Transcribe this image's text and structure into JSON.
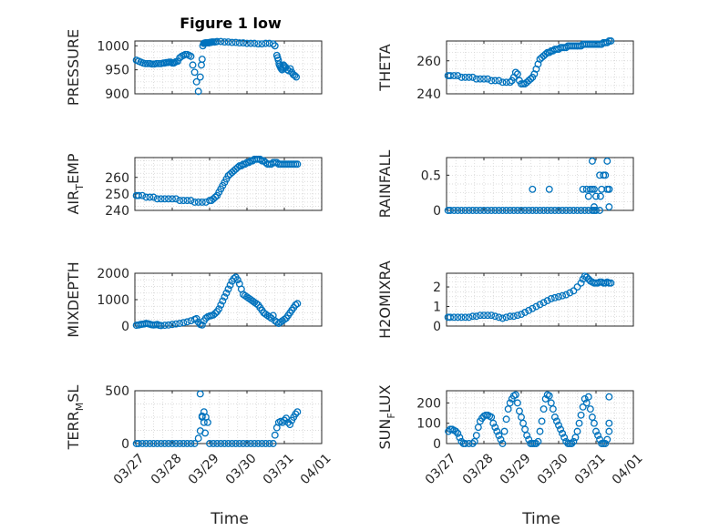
{
  "figure": {
    "title": "Figure 1 low",
    "xlabel": "Time",
    "marker_color": "#0072BD",
    "axis_color": "#262626",
    "grid_color": "#d0d0d0"
  },
  "chart_data": [
    {
      "type": "scatter",
      "id": "pressure",
      "title": "Figure 1 low",
      "ylabel": "PRESSURE",
      "ylabel_sub": "",
      "xlim": [
        0,
        5
      ],
      "ylim": [
        900,
        1010
      ],
      "yticks": [
        900,
        950,
        1000
      ],
      "xticks": [
        0,
        1,
        2,
        3,
        4,
        5
      ],
      "xticklabels": [
        "03/27",
        "03/28",
        "03/29",
        "03/30",
        "03/31",
        "04/01"
      ],
      "show_xticklabels": false,
      "grid": true,
      "x": [
        0.04,
        0.1,
        0.16,
        0.22,
        0.28,
        0.34,
        0.4,
        0.46,
        0.52,
        0.58,
        0.64,
        0.7,
        0.76,
        0.8,
        0.84,
        0.88,
        0.92,
        0.96,
        1.0,
        1.04,
        1.06,
        1.1,
        1.15,
        1.2,
        1.25,
        1.3,
        1.35,
        1.4,
        1.45,
        1.5,
        1.55,
        1.6,
        1.65,
        1.7,
        1.75,
        1.78,
        1.8,
        1.82,
        1.84,
        1.86,
        1.88,
        1.9,
        1.92,
        1.94,
        1.96,
        1.98,
        2.0,
        2.02,
        2.04,
        2.06,
        2.1,
        2.15,
        2.2,
        2.3,
        2.4,
        2.5,
        2.6,
        2.7,
        2.8,
        2.9,
        3.0,
        3.1,
        3.2,
        3.3,
        3.4,
        3.5,
        3.6,
        3.7,
        3.75,
        3.8,
        3.82,
        3.84,
        3.86,
        3.88,
        3.9,
        3.92,
        3.94,
        3.96,
        3.98,
        4.0,
        4.04,
        4.08,
        4.12,
        4.16,
        4.2,
        4.24,
        4.28,
        4.32
      ],
      "y": [
        970,
        968,
        966,
        964,
        963,
        963,
        963,
        962,
        962,
        963,
        963,
        963,
        964,
        964,
        965,
        965,
        966,
        966,
        964,
        964,
        965,
        967,
        968,
        975,
        978,
        980,
        982,
        982,
        980,
        978,
        960,
        945,
        925,
        905,
        935,
        960,
        972,
        1000,
        1005,
        1005,
        1006,
        1006,
        1006,
        1006,
        1006,
        1006,
        1007,
        1007,
        1007,
        1008,
        1008,
        1008,
        1009,
        1009,
        1008,
        1008,
        1007,
        1007,
        1006,
        1006,
        1005,
        1005,
        1005,
        1004,
        1004,
        1005,
        1005,
        1004,
        1000,
        980,
        975,
        970,
        962,
        958,
        955,
        952,
        950,
        955,
        960,
        958,
        955,
        950,
        948,
        952,
        945,
        940,
        938,
        935
      ]
    },
    {
      "type": "scatter",
      "id": "theta",
      "ylabel": "THETA",
      "ylabel_sub": "",
      "xlim": [
        0,
        5
      ],
      "ylim": [
        240,
        272
      ],
      "yticks": [
        240,
        260
      ],
      "xticks": [
        0,
        1,
        2,
        3,
        4,
        5
      ],
      "xticklabels": [
        "03/27",
        "03/28",
        "03/29",
        "03/30",
        "03/31",
        "04/01"
      ],
      "show_xticklabels": false,
      "grid": true,
      "x": [
        0.04,
        0.1,
        0.2,
        0.3,
        0.4,
        0.5,
        0.6,
        0.7,
        0.8,
        0.9,
        1.0,
        1.1,
        1.2,
        1.3,
        1.4,
        1.5,
        1.6,
        1.7,
        1.75,
        1.8,
        1.85,
        1.9,
        1.95,
        2.0,
        2.05,
        2.1,
        2.15,
        2.2,
        2.25,
        2.3,
        2.35,
        2.4,
        2.45,
        2.5,
        2.55,
        2.6,
        2.65,
        2.7,
        2.75,
        2.8,
        2.85,
        2.9,
        2.95,
        3.0,
        3.05,
        3.1,
        3.15,
        3.2,
        3.25,
        3.3,
        3.35,
        3.4,
        3.45,
        3.5,
        3.55,
        3.6,
        3.65,
        3.7,
        3.75,
        3.8,
        3.85,
        3.9,
        3.95,
        4.0,
        4.05,
        4.1,
        4.15,
        4.2,
        4.25,
        4.3,
        4.35,
        4.4
      ],
      "y": [
        251,
        251,
        251,
        251,
        250,
        250,
        250,
        250,
        249,
        249,
        249,
        249,
        248,
        248,
        248,
        247,
        247,
        247,
        248,
        250,
        253,
        252,
        248,
        246,
        246,
        246,
        247,
        248,
        249,
        250,
        252,
        255,
        258,
        261,
        262,
        263,
        264,
        265,
        265,
        266,
        266,
        267,
        267,
        267,
        268,
        268,
        268,
        268,
        269,
        269,
        269,
        269,
        269,
        269,
        269,
        269,
        270,
        270,
        270,
        270,
        270,
        270,
        270,
        270,
        270,
        270,
        270,
        271,
        271,
        271,
        272,
        272
      ]
    },
    {
      "type": "scatter",
      "id": "air_temp",
      "ylabel": "AIR",
      "ylabel_sub": "T",
      "ylabel_after": "EMP",
      "xlim": [
        0,
        5
      ],
      "ylim": [
        240,
        272
      ],
      "yticks": [
        240,
        250,
        260
      ],
      "xticks": [
        0,
        1,
        2,
        3,
        4,
        5
      ],
      "xticklabels": [
        "03/27",
        "03/28",
        "03/29",
        "03/30",
        "03/31",
        "04/01"
      ],
      "show_xticklabels": false,
      "grid": true,
      "x": [
        0.04,
        0.1,
        0.2,
        0.3,
        0.4,
        0.5,
        0.6,
        0.7,
        0.8,
        0.9,
        1.0,
        1.1,
        1.2,
        1.3,
        1.4,
        1.5,
        1.6,
        1.7,
        1.8,
        1.9,
        2.0,
        2.05,
        2.1,
        2.15,
        2.2,
        2.25,
        2.3,
        2.35,
        2.4,
        2.45,
        2.5,
        2.55,
        2.6,
        2.65,
        2.7,
        2.75,
        2.8,
        2.85,
        2.9,
        2.95,
        3.0,
        3.05,
        3.1,
        3.15,
        3.2,
        3.25,
        3.3,
        3.35,
        3.4,
        3.45,
        3.5,
        3.55,
        3.6,
        3.65,
        3.7,
        3.75,
        3.8,
        3.85,
        3.9,
        3.95,
        4.0,
        4.05,
        4.1,
        4.15,
        4.2,
        4.25,
        4.3,
        4.35
      ],
      "y": [
        249,
        249,
        249,
        248,
        248,
        248,
        247,
        247,
        247,
        247,
        247,
        247,
        246,
        246,
        246,
        246,
        245,
        245,
        245,
        245,
        246,
        246,
        247,
        248,
        249,
        251,
        253,
        255,
        257,
        259,
        261,
        262,
        263,
        264,
        265,
        266,
        267,
        267,
        268,
        268,
        269,
        269,
        270,
        270,
        271,
        271,
        271,
        271,
        270,
        270,
        269,
        268,
        268,
        268,
        269,
        269,
        269,
        268,
        268,
        268,
        268,
        268,
        268,
        268,
        268,
        268,
        268,
        268
      ]
    },
    {
      "type": "scatter",
      "id": "rainfall",
      "ylabel": "RAINFALL",
      "ylabel_sub": "",
      "xlim": [
        0,
        5
      ],
      "ylim": [
        0,
        0.75
      ],
      "yticks": [
        0,
        0.5
      ],
      "xticks": [
        0,
        1,
        2,
        3,
        4,
        5
      ],
      "xticklabels": [
        "03/27",
        "03/28",
        "03/29",
        "03/30",
        "03/31",
        "04/01"
      ],
      "show_xticklabels": false,
      "grid": true,
      "x": [
        0.04,
        0.1,
        0.2,
        0.3,
        0.4,
        0.5,
        0.6,
        0.7,
        0.8,
        0.9,
        1.0,
        1.1,
        1.2,
        1.3,
        1.4,
        1.5,
        1.6,
        1.7,
        1.8,
        1.9,
        2.0,
        2.1,
        2.2,
        2.3,
        2.4,
        2.5,
        2.6,
        2.7,
        2.8,
        2.9,
        3.0,
        3.1,
        3.2,
        3.3,
        3.4,
        3.5,
        3.6,
        3.7,
        3.8,
        3.9,
        4.0,
        2.3,
        2.75,
        3.65,
        3.75,
        3.8,
        3.85,
        3.9,
        3.9,
        3.95,
        4.0,
        4.1,
        4.12,
        4.2,
        4.25,
        4.3,
        4.35,
        3.95,
        4.1,
        4.15,
        4.3,
        4.35,
        4.35,
        3.95
      ],
      "y": [
        0,
        0,
        0,
        0,
        0,
        0,
        0,
        0,
        0,
        0,
        0,
        0,
        0,
        0,
        0,
        0,
        0,
        0,
        0,
        0,
        0,
        0,
        0,
        0,
        0,
        0,
        0,
        0,
        0,
        0,
        0,
        0,
        0,
        0,
        0,
        0,
        0,
        0,
        0,
        0,
        0,
        0.3,
        0.3,
        0.3,
        0.3,
        0.2,
        0.3,
        0.3,
        0.7,
        0.3,
        0.2,
        0.5,
        0.2,
        0.5,
        0.5,
        0.7,
        0.3,
        0.05,
        0,
        0.3,
        0.3,
        0.3,
        0.05,
        0
      ]
    },
    {
      "type": "scatter",
      "id": "mixdepth",
      "ylabel": "MIXDEPTH",
      "ylabel_sub": "",
      "xlim": [
        0,
        5
      ],
      "ylim": [
        0,
        2000
      ],
      "yticks": [
        0,
        1000,
        2000
      ],
      "xticks": [
        0,
        1,
        2,
        3,
        4,
        5
      ],
      "xticklabels": [
        "03/27",
        "03/28",
        "03/29",
        "03/30",
        "03/31",
        "04/01"
      ],
      "show_xticklabels": false,
      "grid": true,
      "x": [
        0.04,
        0.1,
        0.15,
        0.2,
        0.25,
        0.3,
        0.35,
        0.4,
        0.45,
        0.5,
        0.55,
        0.6,
        0.65,
        0.7,
        0.8,
        0.9,
        1.0,
        1.1,
        1.2,
        1.3,
        1.4,
        1.5,
        1.6,
        1.65,
        1.7,
        1.75,
        1.8,
        1.85,
        1.9,
        1.95,
        2.0,
        2.05,
        2.1,
        2.15,
        2.2,
        2.25,
        2.3,
        2.35,
        2.4,
        2.45,
        2.5,
        2.55,
        2.6,
        2.65,
        2.7,
        2.75,
        2.8,
        2.85,
        2.9,
        2.95,
        3.0,
        3.05,
        3.1,
        3.15,
        3.2,
        3.25,
        3.3,
        3.35,
        3.4,
        3.45,
        3.5,
        3.55,
        3.6,
        3.65,
        3.7,
        3.75,
        3.8,
        3.85,
        3.9,
        3.95,
        4.0,
        4.05,
        4.1,
        4.15,
        4.2,
        4.25,
        4.3,
        4.35
      ],
      "y": [
        30,
        40,
        60,
        70,
        80,
        100,
        90,
        70,
        50,
        40,
        50,
        60,
        30,
        20,
        30,
        40,
        60,
        80,
        100,
        130,
        160,
        200,
        250,
        280,
        150,
        60,
        40,
        200,
        300,
        350,
        380,
        400,
        420,
        480,
        550,
        650,
        800,
        950,
        1100,
        1250,
        1400,
        1550,
        1700,
        1800,
        1850,
        1750,
        1600,
        1400,
        1200,
        1150,
        1100,
        1050,
        1000,
        950,
        900,
        850,
        800,
        700,
        600,
        500,
        450,
        400,
        350,
        300,
        400,
        200,
        150,
        100,
        150,
        200,
        250,
        300,
        400,
        500,
        600,
        700,
        800,
        850
      ]
    },
    {
      "type": "scatter",
      "id": "h2omixra",
      "ylabel": "H2OMIXRA",
      "ylabel_sub": "",
      "xlim": [
        0,
        5
      ],
      "ylim": [
        0,
        2.7
      ],
      "yticks": [
        0,
        1,
        2
      ],
      "xticks": [
        0,
        1,
        2,
        3,
        4,
        5
      ],
      "xticklabels": [
        "03/27",
        "03/28",
        "03/29",
        "03/30",
        "03/31",
        "04/01"
      ],
      "show_xticklabels": false,
      "grid": true,
      "x": [
        0.04,
        0.1,
        0.2,
        0.3,
        0.4,
        0.5,
        0.6,
        0.7,
        0.8,
        0.9,
        1.0,
        1.1,
        1.2,
        1.3,
        1.4,
        1.5,
        1.6,
        1.7,
        1.8,
        1.9,
        2.0,
        2.1,
        2.2,
        2.3,
        2.4,
        2.5,
        2.6,
        2.7,
        2.8,
        2.9,
        3.0,
        3.1,
        3.2,
        3.3,
        3.4,
        3.5,
        3.6,
        3.65,
        3.7,
        3.75,
        3.8,
        3.85,
        3.9,
        3.95,
        4.0,
        4.05,
        4.1,
        4.15,
        4.2,
        4.25,
        4.3,
        4.35,
        4.4
      ],
      "y": [
        0.45,
        0.45,
        0.45,
        0.45,
        0.45,
        0.45,
        0.45,
        0.5,
        0.5,
        0.55,
        0.55,
        0.55,
        0.55,
        0.5,
        0.45,
        0.4,
        0.45,
        0.5,
        0.5,
        0.55,
        0.6,
        0.7,
        0.8,
        0.9,
        1.0,
        1.1,
        1.2,
        1.3,
        1.4,
        1.45,
        1.5,
        1.55,
        1.6,
        1.7,
        1.8,
        2.0,
        2.2,
        2.4,
        2.55,
        2.5,
        2.4,
        2.3,
        2.25,
        2.2,
        2.2,
        2.2,
        2.25,
        2.25,
        2.2,
        2.2,
        2.25,
        2.2,
        2.2
      ]
    },
    {
      "type": "scatter",
      "id": "terr_msl",
      "ylabel": "TERR",
      "ylabel_sub": "M",
      "ylabel_after": "SL",
      "xlim": [
        0,
        5
      ],
      "ylim": [
        0,
        500
      ],
      "yticks": [
        0,
        500
      ],
      "xticks": [
        0,
        1,
        2,
        3,
        4,
        5
      ],
      "xticklabels": [
        "03/27",
        "03/28",
        "03/29",
        "03/30",
        "03/31",
        "04/01"
      ],
      "show_xticklabels": true,
      "grid": true,
      "x": [
        0.04,
        0.1,
        0.2,
        0.3,
        0.4,
        0.5,
        0.6,
        0.7,
        0.8,
        0.9,
        1.0,
        1.1,
        1.2,
        1.3,
        1.4,
        1.5,
        1.6,
        1.7,
        1.75,
        1.8,
        1.85,
        1.9,
        1.95,
        2.0,
        2.1,
        2.2,
        2.3,
        2.4,
        2.5,
        2.6,
        2.7,
        2.8,
        2.9,
        3.0,
        3.1,
        3.2,
        3.3,
        3.4,
        3.5,
        3.6,
        3.7,
        3.75,
        3.8,
        3.85,
        3.9,
        3.95,
        4.0,
        4.05,
        4.1,
        4.15,
        4.2,
        4.25,
        4.3,
        4.35,
        1.75,
        1.8,
        1.85,
        1.88
      ],
      "y": [
        0,
        0,
        0,
        0,
        0,
        0,
        0,
        0,
        0,
        0,
        0,
        0,
        0,
        0,
        0,
        0,
        0,
        50,
        120,
        260,
        300,
        250,
        200,
        0,
        0,
        0,
        0,
        0,
        0,
        0,
        0,
        0,
        0,
        0,
        0,
        0,
        0,
        0,
        0,
        0,
        0,
        80,
        150,
        200,
        210,
        200,
        220,
        240,
        200,
        180,
        220,
        250,
        280,
        300,
        470,
        250,
        200,
        100
      ]
    },
    {
      "type": "scatter",
      "id": "sun_flux",
      "ylabel": "SUN",
      "ylabel_sub": "F",
      "ylabel_after": "LUX",
      "xlim": [
        0,
        5
      ],
      "ylim": [
        0,
        260
      ],
      "yticks": [
        0,
        100,
        200
      ],
      "xticks": [
        0,
        1,
        2,
        3,
        4,
        5
      ],
      "xticklabels": [
        "03/27",
        "03/28",
        "03/29",
        "03/30",
        "03/31",
        "04/01"
      ],
      "show_xticklabels": true,
      "grid": true,
      "x": [
        0.05,
        0.1,
        0.15,
        0.2,
        0.25,
        0.3,
        0.35,
        0.4,
        0.45,
        0.5,
        0.6,
        0.7,
        0.75,
        0.8,
        0.85,
        0.9,
        0.95,
        1.0,
        1.05,
        1.1,
        1.15,
        1.2,
        1.25,
        1.3,
        1.35,
        1.4,
        1.45,
        1.5,
        1.55,
        1.6,
        1.65,
        1.7,
        1.75,
        1.8,
        1.85,
        1.9,
        1.95,
        2.0,
        2.05,
        2.1,
        2.15,
        2.2,
        2.25,
        2.3,
        2.35,
        2.4,
        2.45,
        2.5,
        2.55,
        2.6,
        2.65,
        2.7,
        2.75,
        2.8,
        2.85,
        2.9,
        2.95,
        3.0,
        3.05,
        3.1,
        3.15,
        3.2,
        3.25,
        3.3,
        3.35,
        3.4,
        3.45,
        3.5,
        3.55,
        3.6,
        3.65,
        3.7,
        3.75,
        3.8,
        3.85,
        3.9,
        3.95,
        4.0,
        4.05,
        4.1,
        4.15,
        4.2,
        4.25,
        4.3,
        4.35,
        4.35,
        4.35
      ],
      "y": [
        60,
        70,
        70,
        65,
        60,
        50,
        30,
        10,
        0,
        0,
        0,
        0,
        10,
        40,
        80,
        110,
        125,
        135,
        140,
        140,
        135,
        130,
        100,
        80,
        60,
        40,
        20,
        0,
        60,
        120,
        170,
        200,
        220,
        235,
        240,
        200,
        160,
        130,
        100,
        70,
        40,
        20,
        0,
        0,
        0,
        0,
        10,
        60,
        110,
        170,
        220,
        240,
        235,
        200,
        170,
        130,
        110,
        90,
        70,
        50,
        30,
        10,
        0,
        0,
        0,
        10,
        30,
        60,
        100,
        140,
        180,
        220,
        200,
        230,
        170,
        130,
        100,
        60,
        40,
        20,
        0,
        0,
        0,
        20,
        60,
        100,
        230
      ]
    }
  ]
}
